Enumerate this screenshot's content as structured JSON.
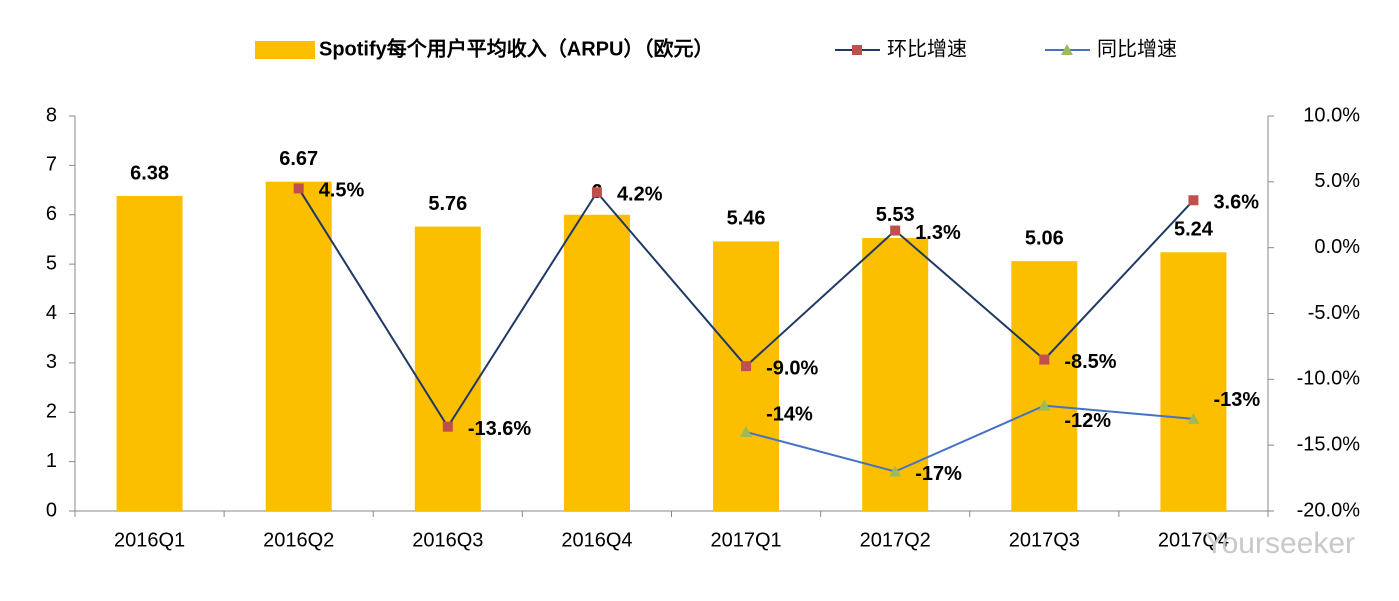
{
  "chart_data": {
    "type": "bar_line",
    "categories": [
      "2016Q1",
      "2016Q2",
      "2016Q3",
      "2016Q4",
      "2017Q1",
      "2017Q2",
      "2017Q3",
      "2017Q4"
    ],
    "series": [
      {
        "name": "Spotify每个用户平均收入（ARPU）（欧元）",
        "type": "bar",
        "color": "#fcbf00",
        "values": [
          6.38,
          6.67,
          5.76,
          6,
          5.46,
          5.53,
          5.06,
          5.24
        ]
      },
      {
        "name": "环比增速",
        "type": "line",
        "axis": "y2",
        "color": "#203864",
        "marker_color": "#c0504d",
        "marker": "square",
        "values": [
          null,
          4.5,
          -13.6,
          4.2,
          -9.0,
          1.3,
          -8.5,
          3.6
        ],
        "value_labels": [
          null,
          "4.5%",
          "-13.6%",
          "4.2%",
          "-9.0%",
          "1.3%",
          "-8.5%",
          "3.6%"
        ]
      },
      {
        "name": "同比增速",
        "type": "line",
        "axis": "y2",
        "color": "#4472c4",
        "marker_color": "#9bbb59",
        "marker": "triangle",
        "values": [
          null,
          null,
          null,
          null,
          -14,
          -17,
          -12,
          -13
        ],
        "value_labels": [
          null,
          null,
          null,
          null,
          "-14%",
          "-17%",
          "-12%",
          "-13%"
        ]
      }
    ],
    "ylim": [
      0,
      8
    ],
    "yticks": [
      0,
      1,
      2,
      3,
      4,
      5,
      6,
      7,
      8
    ],
    "y2lim": [
      -20,
      10
    ],
    "y2ticks": [
      {
        "value": -20,
        "label": "-20.0%"
      },
      {
        "value": -15,
        "label": "-15.0%"
      },
      {
        "value": -10,
        "label": "-10.0%"
      },
      {
        "value": -5,
        "label": "-5.0%"
      },
      {
        "value": 0,
        "label": "0.0%"
      },
      {
        "value": 5,
        "label": "5.0%"
      },
      {
        "value": 10,
        "label": "10.0%"
      }
    ],
    "legend": "top",
    "watermark": "Yourseeker"
  }
}
